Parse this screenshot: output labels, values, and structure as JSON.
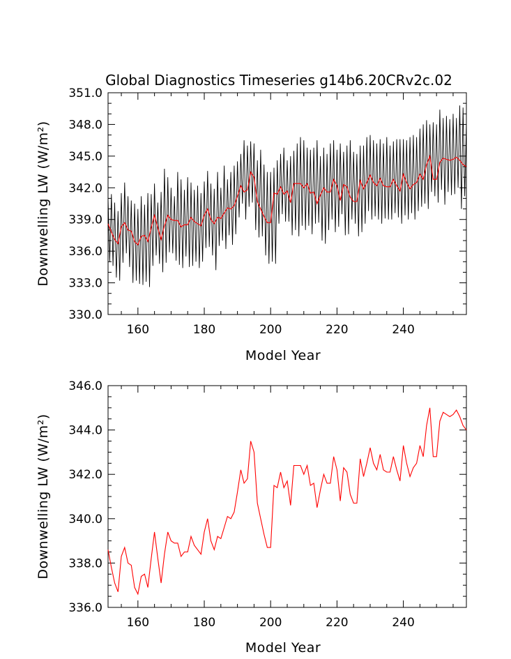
{
  "chart_data": [
    {
      "type": "line",
      "title": "Global Diagnostics Timeseries g14b6.20CRv2c.02",
      "xlabel": "Model Year",
      "ylabel": "Downwelling LW (W/m²)",
      "xlim": [
        151,
        259
      ],
      "ylim": [
        330,
        351
      ],
      "xticks": [
        160,
        180,
        200,
        220,
        240
      ],
      "yticks": [
        "330.0",
        "333.0",
        "336.0",
        "339.0",
        "342.0",
        "345.0",
        "348.0",
        "351.0"
      ],
      "grid": false,
      "legend": "none",
      "series": [
        {
          "color": "#000000",
          "style": "monthly",
          "x": [
            151.0,
            151.5,
            152.0,
            152.5,
            153.0,
            153.5,
            154.0,
            154.5,
            155.0,
            155.5,
            156.0,
            156.5,
            157.0,
            157.5,
            158.0,
            158.5,
            159.0,
            159.5,
            160.0,
            160.5,
            161.0,
            161.5,
            162.0,
            162.5,
            163.0,
            163.5,
            164.0,
            164.5,
            165.0,
            165.5,
            166.0,
            166.5,
            167.0,
            167.5,
            168.0,
            168.5,
            169.0,
            169.5,
            170.0,
            170.5,
            171.0,
            171.5,
            172.0,
            172.5,
            173.0,
            173.5,
            174.0,
            174.5,
            175.0,
            175.5,
            176.0,
            176.5,
            177.0,
            177.5,
            178.0,
            178.5,
            179.0,
            179.5,
            180.0,
            180.5,
            181.0,
            181.5,
            182.0,
            182.5,
            183.0,
            183.5,
            184.0,
            184.5,
            185.0,
            185.5,
            186.0,
            186.5,
            187.0,
            187.5,
            188.0,
            188.5,
            189.0,
            189.5,
            190.0,
            190.5,
            191.0,
            191.5,
            192.0,
            192.5,
            193.0,
            193.5,
            194.0,
            194.5,
            195.0,
            195.5,
            196.0,
            196.5,
            197.0,
            197.5,
            198.0,
            198.5,
            199.0,
            199.5,
            200.0,
            200.5,
            201.0,
            201.5,
            202.0,
            202.5,
            203.0,
            203.5,
            204.0,
            204.5,
            205.0,
            205.5,
            206.0,
            206.5,
            207.0,
            207.5,
            208.0,
            208.5,
            209.0,
            209.5,
            210.0,
            210.5,
            211.0,
            211.5,
            212.0,
            212.5,
            213.0,
            213.5,
            214.0,
            214.5,
            215.0,
            215.5,
            216.0,
            216.5,
            217.0,
            217.5,
            218.0,
            218.5,
            219.0,
            219.5,
            220.0,
            220.5,
            221.0,
            221.5,
            222.0,
            222.5,
            223.0,
            223.5,
            224.0,
            224.5,
            225.0,
            225.5,
            226.0,
            226.5,
            227.0,
            227.5,
            228.0,
            228.5,
            229.0,
            229.5,
            230.0,
            230.5,
            231.0,
            231.5,
            232.0,
            232.5,
            233.0,
            233.5,
            234.0,
            234.5,
            235.0,
            235.5,
            236.0,
            236.5,
            237.0,
            237.5,
            238.0,
            238.5,
            239.0,
            239.5,
            240.0,
            240.5,
            241.0,
            241.5,
            242.0,
            242.5,
            243.0,
            243.5,
            244.0,
            244.5,
            245.0,
            245.5,
            246.0,
            246.5,
            247.0,
            247.5,
            248.0,
            248.5,
            249.0,
            249.5,
            250.0,
            250.5,
            251.0,
            251.5,
            252.0,
            252.5,
            253.0,
            253.5,
            254.0,
            254.5,
            255.0,
            255.5,
            256.0,
            256.5,
            257.0,
            257.5,
            258.0,
            258.5,
            259.0
          ],
          "values": [
            341.0,
            335.0,
            341.4,
            334.6,
            340.6,
            333.5,
            339.8,
            333.2,
            341.5,
            334.9,
            342.5,
            335.8,
            341.2,
            334.5,
            340.8,
            333.0,
            340.5,
            333.2,
            340.0,
            332.9,
            341.2,
            332.8,
            340.4,
            333.1,
            341.5,
            332.6,
            341.4,
            334.6,
            342.4,
            335.6,
            340.6,
            334.8,
            341.6,
            334.0,
            343.8,
            334.9,
            343.0,
            335.9,
            342.0,
            335.8,
            341.2,
            335.1,
            343.5,
            334.7,
            342.8,
            334.4,
            341.8,
            335.5,
            343.0,
            334.5,
            342.5,
            334.6,
            341.8,
            335.0,
            342.2,
            334.4,
            341.5,
            335.0,
            342.6,
            336.3,
            343.6,
            336.4,
            342.4,
            335.6,
            341.9,
            334.2,
            343.5,
            336.5,
            342.0,
            337.0,
            344.1,
            336.2,
            342.8,
            337.5,
            343.5,
            336.6,
            344.1,
            337.6,
            344.5,
            339.2,
            345.2,
            340.5,
            346.5,
            339.0,
            346.0,
            340.2,
            346.4,
            340.6,
            346.2,
            338.0,
            344.6,
            337.3,
            345.6,
            337.4,
            344.2,
            335.6,
            343.5,
            334.8,
            343.5,
            335.0,
            343.9,
            334.8,
            344.6,
            338.6,
            345.2,
            339.5,
            345.8,
            338.8,
            344.6,
            338.8,
            345.0,
            337.5,
            345.5,
            338.0,
            346.2,
            337.4,
            346.8,
            338.4,
            346.5,
            338.0,
            345.8,
            338.4,
            345.6,
            337.6,
            345.8,
            338.6,
            346.5,
            338.7,
            345.0,
            337.0,
            345.8,
            336.7,
            345.2,
            338.0,
            346.2,
            339.0,
            346.5,
            337.8,
            345.6,
            338.3,
            346.2,
            339.5,
            345.4,
            337.5,
            346.0,
            337.6,
            346.5,
            339.0,
            345.4,
            338.6,
            345.2,
            337.4,
            346.0,
            337.8,
            346.0,
            338.6,
            346.8,
            339.8,
            347.0,
            339.0,
            346.5,
            339.3,
            346.2,
            339.0,
            346.6,
            338.6,
            346.2,
            339.1,
            346.8,
            339.0,
            346.0,
            339.0,
            346.4,
            339.6,
            346.6,
            339.2,
            346.6,
            338.6,
            346.6,
            339.4,
            346.5,
            339.0,
            346.8,
            339.6,
            347.0,
            339.0,
            346.8,
            339.8,
            347.6,
            340.2,
            348.0,
            340.5,
            348.4,
            340.0,
            348.0,
            341.6,
            348.2,
            341.2,
            348.0,
            340.6,
            349.4,
            341.8,
            348.6,
            340.4,
            348.8,
            341.6,
            348.5,
            341.3,
            349.0,
            341.4,
            348.6,
            342.0,
            349.8,
            340.0,
            349.6,
            341.2,
            348.2
          ]
        },
        {
          "color": "#ff0000",
          "style": "annual",
          "x": [
            151,
            152,
            153,
            154,
            155,
            156,
            157,
            158,
            159,
            160,
            161,
            162,
            163,
            164,
            165,
            166,
            167,
            168,
            169,
            170,
            171,
            172,
            173,
            174,
            175,
            176,
            177,
            178,
            179,
            180,
            181,
            182,
            183,
            184,
            185,
            186,
            187,
            188,
            189,
            190,
            191,
            192,
            193,
            194,
            195,
            196,
            197,
            198,
            199,
            200,
            201,
            202,
            203,
            204,
            205,
            206,
            207,
            208,
            209,
            210,
            211,
            212,
            213,
            214,
            215,
            216,
            217,
            218,
            219,
            220,
            221,
            222,
            223,
            224,
            225,
            226,
            227,
            228,
            229,
            230,
            231,
            232,
            233,
            234,
            235,
            236,
            237,
            238,
            239,
            240,
            241,
            242,
            243,
            244,
            245,
            246,
            247,
            248,
            249,
            250,
            251,
            252,
            253,
            254,
            255,
            256,
            257,
            258,
            259
          ],
          "values": [
            338.6,
            337.8,
            337.1,
            336.7,
            338.3,
            338.7,
            338.0,
            337.9,
            336.9,
            336.6,
            337.4,
            337.5,
            336.9,
            338.2,
            339.4,
            338.2,
            337.1,
            338.4,
            339.4,
            339.0,
            338.9,
            338.9,
            338.3,
            338.5,
            338.5,
            339.2,
            338.8,
            338.6,
            338.4,
            339.4,
            340.0,
            339.0,
            338.6,
            339.2,
            339.1,
            339.6,
            340.1,
            340.0,
            340.3,
            341.2,
            342.2,
            341.6,
            341.8,
            343.5,
            343.0,
            340.7,
            340.0,
            339.3,
            338.7,
            338.7,
            341.5,
            341.4,
            342.1,
            341.4,
            341.7,
            340.6,
            342.4,
            342.4,
            342.4,
            342.0,
            342.4,
            341.5,
            341.6,
            340.5,
            341.3,
            342.0,
            341.6,
            341.6,
            342.8,
            342.2,
            340.8,
            342.3,
            342.1,
            341.1,
            340.7,
            340.7,
            342.7,
            341.9,
            342.5,
            343.2,
            342.5,
            342.2,
            342.9,
            342.2,
            342.1,
            342.1,
            342.8,
            342.2,
            341.7,
            343.3,
            342.5,
            341.9,
            342.3,
            342.5,
            343.3,
            342.8,
            344.2,
            345.0,
            342.8,
            342.8,
            344.4,
            344.8,
            344.7,
            344.6,
            344.7,
            344.9,
            344.6,
            344.2,
            344.0
          ]
        }
      ]
    },
    {
      "type": "line",
      "title": "",
      "xlabel": "Model Year",
      "ylabel": "Downwelling LW (W/m²)",
      "xlim": [
        151,
        259
      ],
      "ylim": [
        336,
        346
      ],
      "xticks": [
        160,
        180,
        200,
        220,
        240
      ],
      "yticks": [
        "336.0",
        "338.0",
        "340.0",
        "342.0",
        "344.0",
        "346.0"
      ],
      "grid": false,
      "legend": "none",
      "series": [
        {
          "color": "#ff0000",
          "style": "annual",
          "x": [
            151,
            152,
            153,
            154,
            155,
            156,
            157,
            158,
            159,
            160,
            161,
            162,
            163,
            164,
            165,
            166,
            167,
            168,
            169,
            170,
            171,
            172,
            173,
            174,
            175,
            176,
            177,
            178,
            179,
            180,
            181,
            182,
            183,
            184,
            185,
            186,
            187,
            188,
            189,
            190,
            191,
            192,
            193,
            194,
            195,
            196,
            197,
            198,
            199,
            200,
            201,
            202,
            203,
            204,
            205,
            206,
            207,
            208,
            209,
            210,
            211,
            212,
            213,
            214,
            215,
            216,
            217,
            218,
            219,
            220,
            221,
            222,
            223,
            224,
            225,
            226,
            227,
            228,
            229,
            230,
            231,
            232,
            233,
            234,
            235,
            236,
            237,
            238,
            239,
            240,
            241,
            242,
            243,
            244,
            245,
            246,
            247,
            248,
            249,
            250,
            251,
            252,
            253,
            254,
            255,
            256,
            257,
            258,
            259
          ],
          "values": [
            338.6,
            337.8,
            337.1,
            336.7,
            338.3,
            338.7,
            338.0,
            337.9,
            336.9,
            336.6,
            337.4,
            337.5,
            336.9,
            338.2,
            339.4,
            338.2,
            337.1,
            338.4,
            339.4,
            339.0,
            338.9,
            338.9,
            338.3,
            338.5,
            338.5,
            339.2,
            338.8,
            338.6,
            338.4,
            339.4,
            340.0,
            339.0,
            338.6,
            339.2,
            339.1,
            339.6,
            340.1,
            340.0,
            340.3,
            341.2,
            342.2,
            341.6,
            341.8,
            343.5,
            343.0,
            340.7,
            340.0,
            339.3,
            338.7,
            338.7,
            341.5,
            341.4,
            342.1,
            341.4,
            341.7,
            340.6,
            342.4,
            342.4,
            342.4,
            342.0,
            342.4,
            341.5,
            341.6,
            340.5,
            341.3,
            342.0,
            341.6,
            341.6,
            342.8,
            342.2,
            340.8,
            342.3,
            342.1,
            341.1,
            340.7,
            340.7,
            342.7,
            341.9,
            342.5,
            343.2,
            342.5,
            342.2,
            342.9,
            342.2,
            342.1,
            342.1,
            342.8,
            342.2,
            341.7,
            343.3,
            342.5,
            341.9,
            342.3,
            342.5,
            343.3,
            342.8,
            344.2,
            345.0,
            342.8,
            342.8,
            344.4,
            344.8,
            344.7,
            344.6,
            344.7,
            344.9,
            344.6,
            344.2,
            344.0
          ]
        }
      ]
    }
  ]
}
